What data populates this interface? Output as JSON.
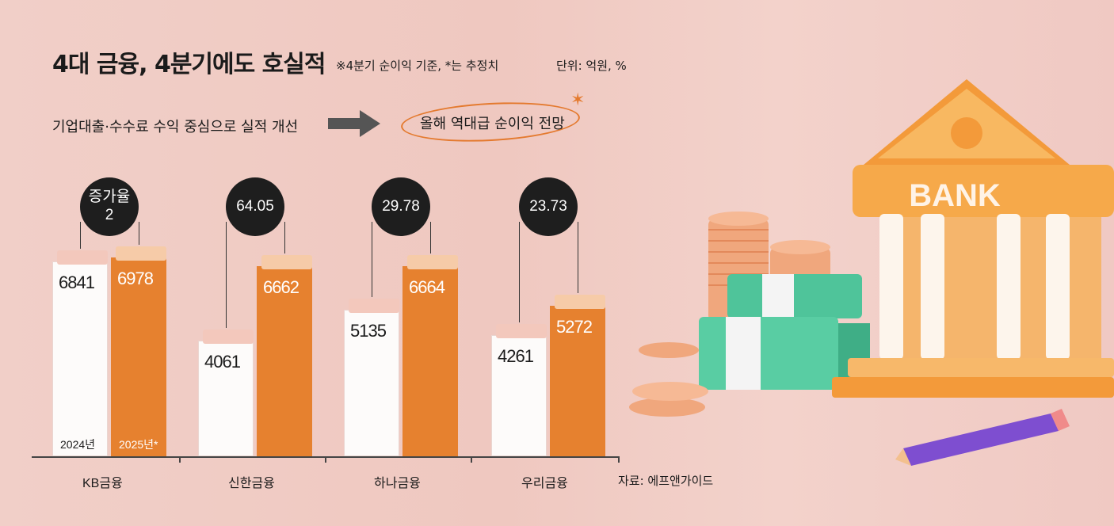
{
  "title": "4대 금융, 4분기에도 호실적",
  "note": "※4분기 순이익 기준, *는 추정치",
  "unit": "단위: 억원, %",
  "subtitle_left": "기업대출·수수료 수익 중심으로 실적 개선",
  "subtitle_right": "올해 역대급 순이익 전망",
  "source": "자료: 에프앤가이드",
  "bank_sign": "BANK",
  "colors": {
    "y2024": "#ffffff",
    "y2025": "#e6812f",
    "growth_badge": "#1e1e1e"
  },
  "chart_data": {
    "type": "bar",
    "categories": [
      "KB금융",
      "신한금융",
      "하나금융",
      "우리금융"
    ],
    "series": [
      {
        "name": "2024년",
        "values": [
          6841,
          4061,
          5135,
          4261
        ]
      },
      {
        "name": "2025년*",
        "values": [
          6978,
          6662,
          6664,
          5272
        ]
      }
    ],
    "growth_label": "증가율",
    "growth": [
      "2",
      "64.05",
      "29.78",
      "23.73"
    ],
    "ylim": [
      0,
      8000
    ]
  }
}
